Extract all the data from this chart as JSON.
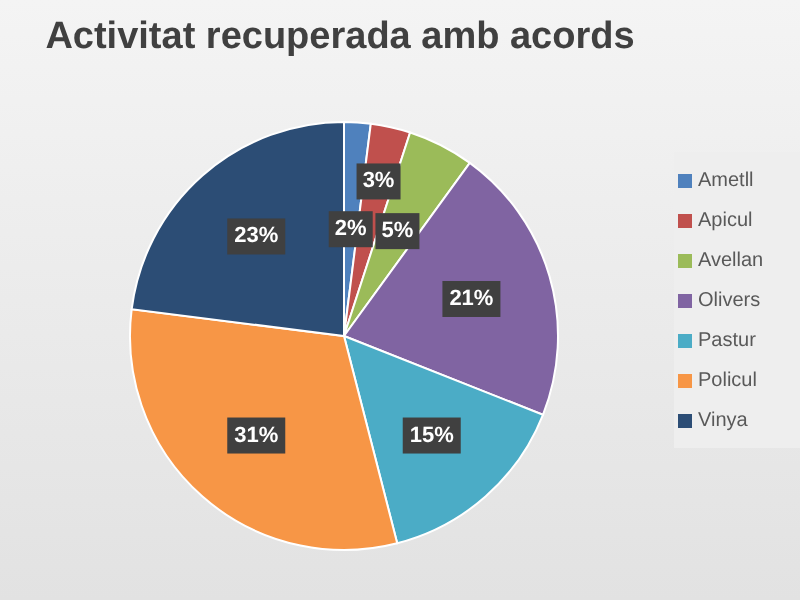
{
  "chart_data": {
    "type": "pie",
    "title": "Activitat recuperada amb acords",
    "categories": [
      "Ametll",
      "Apicul",
      "Avellan",
      "Olivers",
      "Pastur",
      "Policul",
      "Vinya"
    ],
    "values": [
      2,
      3,
      5,
      21,
      15,
      31,
      23
    ],
    "colors": [
      "#4f81bd",
      "#c0504d",
      "#9bbb59",
      "#8064a2",
      "#4bacc6",
      "#f79646",
      "#2c4d75"
    ],
    "value_labels": [
      "2%",
      "3%",
      "5%",
      "21%",
      "15%",
      "31%",
      "23%"
    ],
    "legend": "right"
  }
}
